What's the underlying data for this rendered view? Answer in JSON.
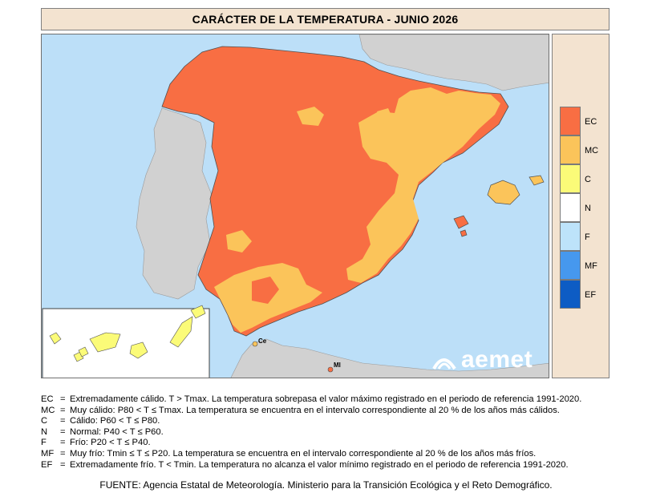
{
  "title": "CARÁCTER DE LA TEMPERATURA - JUNIO 2026",
  "legend": [
    {
      "code": "EC",
      "color": "#f86e43"
    },
    {
      "code": "MC",
      "color": "#fbc45a"
    },
    {
      "code": "C",
      "color": "#fbfb78"
    },
    {
      "code": "N",
      "color": "#ffffff"
    },
    {
      "code": "F",
      "color": "#bde3fa"
    },
    {
      "code": "MF",
      "color": "#4698ee"
    },
    {
      "code": "EF",
      "color": "#0d5cc4"
    }
  ],
  "map_labels": {
    "ceuta": "Ce",
    "melilla": "Ml"
  },
  "logo_text": "aemet",
  "notes": [
    {
      "code": "EC",
      "text": "Extremadamente cálido. T > Tmax. La temperatura sobrepasa el valor máximo registrado en el periodo de referencia 1991-2020."
    },
    {
      "code": "MC",
      "text": "Muy cálido: P80 < T ≤ Tmax. La temperatura se encuentra en el intervalo correspondiente al 20 % de los años más cálidos."
    },
    {
      "code": "C",
      "text": "Cálido: P60 < T ≤ P80."
    },
    {
      "code": "N",
      "text": "Normal: P40 < T ≤ P60."
    },
    {
      "code": "F",
      "text": "Frío: P20 < T ≤ P40."
    },
    {
      "code": "MF",
      "text": "Muy frío: Tmin ≤ T ≤ P20. La temperatura se encuentra en el intervalo correspondiente al 20 % de los años más fríos."
    },
    {
      "code": "EF",
      "text": "Extremadamente frío. T < Tmin. La temperatura no alcanza el valor mínimo registrado en el periodo de referencia 1991-2020."
    }
  ],
  "source": "FUENTE: Agencia Estatal de Meteorología. Ministerio para la Transición Ecológica y el Reto Demográfico."
}
